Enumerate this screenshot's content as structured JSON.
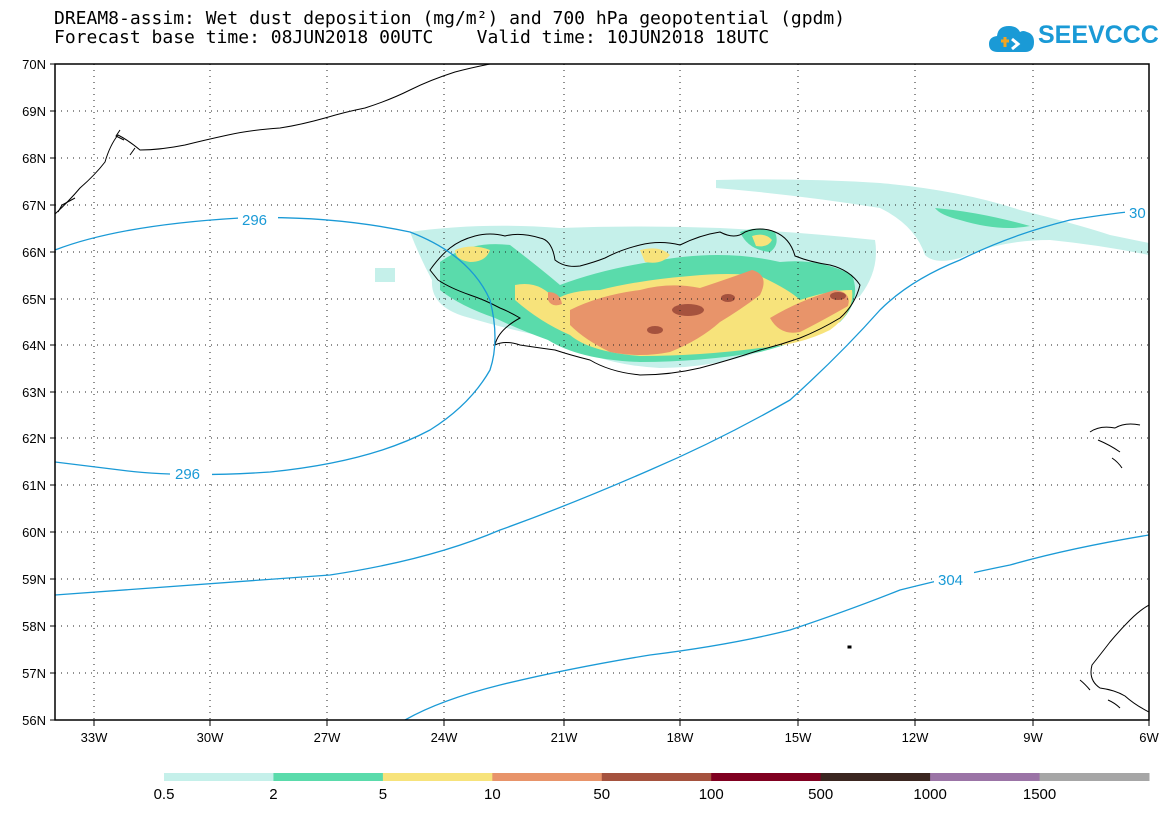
{
  "header": {
    "title_line1": "DREAM8-assim: Wet dust deposition (mg/m²) and 700 hPa geopotential (gpdm)",
    "title_line2": "Forecast base time: 08JUN2018 00UTC    Valid time: 10JUN2018 18UTC"
  },
  "logo": {
    "text": "SEEVCCC",
    "icon": "cloud-icon",
    "color": "#1a9ad6"
  },
  "map": {
    "lon_range": [
      -34.5,
      -6
    ],
    "lat_range": [
      56,
      70
    ],
    "grid": true,
    "lat_labels": [
      "70N",
      "69N",
      "68N",
      "67N",
      "66N",
      "65N",
      "64N",
      "63N",
      "62N",
      "61N",
      "60N",
      "59N",
      "58N",
      "57N",
      "56N"
    ],
    "lon_labels": [
      "33W",
      "30W",
      "27W",
      "24W",
      "21W",
      "18W",
      "15W",
      "12W",
      "9W",
      "6W"
    ],
    "contour_labels": [
      "296",
      "296",
      "304",
      "30"
    ],
    "contour_color": "#1a9ad6"
  },
  "colorbar": {
    "labels": [
      "0.5",
      "2",
      "5",
      "10",
      "50",
      "100",
      "500",
      "1000",
      "1500"
    ],
    "colors": [
      "#c5f0ea",
      "#5adbab",
      "#f7e37b",
      "#e8946a",
      "#a5523e",
      "#800020",
      "#3b2620",
      "#9b74a6",
      "#a6a6a6"
    ]
  }
}
